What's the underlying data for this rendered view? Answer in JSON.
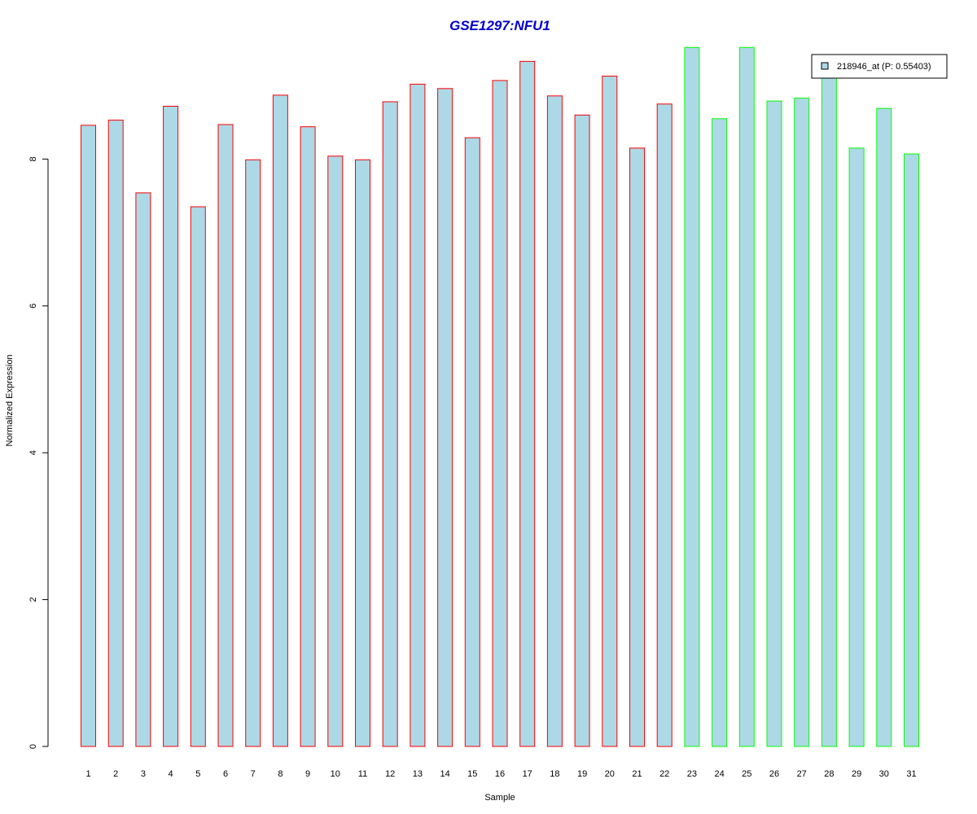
{
  "chart_data": {
    "type": "bar",
    "title": "GSE1297:NFU1",
    "xlabel": "Sample",
    "ylabel": "Normalized Expression",
    "ylim": [
      0,
      9.5
    ],
    "yticks": [
      "0",
      "2",
      "4",
      "6",
      "8"
    ],
    "grid": false,
    "categories": [
      "1",
      "2",
      "3",
      "4",
      "5",
      "6",
      "7",
      "8",
      "9",
      "10",
      "11",
      "12",
      "13",
      "14",
      "15",
      "16",
      "17",
      "18",
      "19",
      "20",
      "21",
      "22",
      "23",
      "24",
      "25",
      "26",
      "27",
      "28",
      "29",
      "30",
      "31"
    ],
    "values": [
      8.46,
      8.53,
      7.54,
      8.72,
      7.35,
      8.47,
      7.99,
      8.87,
      8.44,
      8.04,
      7.99,
      8.78,
      9.02,
      8.96,
      8.29,
      9.07,
      9.33,
      8.86,
      8.6,
      9.13,
      8.15,
      8.75,
      9.52,
      8.55,
      9.52,
      8.79,
      8.83,
      9.2,
      8.15,
      8.69,
      8.07
    ],
    "bar_fill": "#add8e6",
    "group_border_colors": {
      "group1": "#ff0000",
      "group2": "#00ff00"
    },
    "group_assignment": [
      "group1",
      "group1",
      "group1",
      "group1",
      "group1",
      "group1",
      "group1",
      "group1",
      "group1",
      "group1",
      "group1",
      "group1",
      "group1",
      "group1",
      "group1",
      "group1",
      "group1",
      "group1",
      "group1",
      "group1",
      "group1",
      "group1",
      "group2",
      "group2",
      "group2",
      "group2",
      "group2",
      "group2",
      "group2",
      "group2",
      "group2"
    ],
    "title_color": "#0000cd",
    "legend": {
      "label": "218946_at (P: 0.55403)",
      "position": "top-right"
    }
  }
}
